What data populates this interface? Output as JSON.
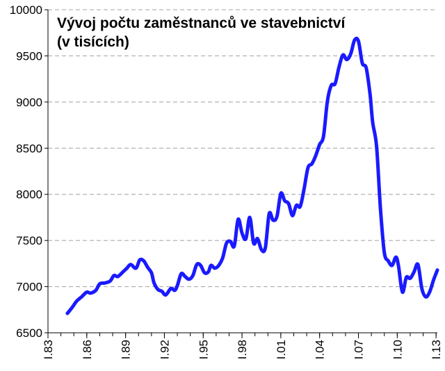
{
  "chart_data": {
    "type": "line",
    "title_lines": [
      "Vývoj počtu zaměstnanců ve stavebnictví",
      "(v tisících)"
    ],
    "xlabel": "",
    "ylabel": "",
    "ylim": [
      6500,
      10000
    ],
    "yticks": [
      6500,
      7000,
      7500,
      8000,
      8500,
      9000,
      9500,
      10000
    ],
    "xlim": [
      1983,
      2013.1
    ],
    "xticks": [
      {
        "value": 1983,
        "label": "I.83"
      },
      {
        "value": 1986,
        "label": "I.86"
      },
      {
        "value": 1989,
        "label": "I.89"
      },
      {
        "value": 1992,
        "label": "I.92"
      },
      {
        "value": 1995,
        "label": "I.95"
      },
      {
        "value": 1998,
        "label": "I.98"
      },
      {
        "value": 2001,
        "label": "I.01"
      },
      {
        "value": 2004,
        "label": "I.04"
      },
      {
        "value": 2007,
        "label": "I.07"
      },
      {
        "value": 2010,
        "label": "I.10"
      },
      {
        "value": 2013,
        "label": "I.13"
      }
    ],
    "grid": "horizontal-dashed",
    "legend": "none",
    "colors": {
      "line": "#1a1aff",
      "grid": "#a0a0a0",
      "axis": "#000000"
    },
    "series": [
      {
        "values": [
          [
            1984.5,
            6710
          ],
          [
            1984.9,
            6780
          ],
          [
            1985.2,
            6840
          ],
          [
            1985.6,
            6890
          ],
          [
            1986.0,
            6940
          ],
          [
            1986.3,
            6930
          ],
          [
            1986.7,
            6960
          ],
          [
            1987.0,
            7030
          ],
          [
            1987.4,
            7040
          ],
          [
            1987.8,
            7060
          ],
          [
            1988.1,
            7120
          ],
          [
            1988.4,
            7110
          ],
          [
            1988.8,
            7160
          ],
          [
            1989.1,
            7200
          ],
          [
            1989.4,
            7240
          ],
          [
            1989.8,
            7200
          ],
          [
            1990.1,
            7290
          ],
          [
            1990.4,
            7280
          ],
          [
            1990.7,
            7210
          ],
          [
            1991.0,
            7150
          ],
          [
            1991.2,
            7040
          ],
          [
            1991.5,
            6970
          ],
          [
            1991.8,
            6950
          ],
          [
            1992.1,
            6910
          ],
          [
            1992.5,
            6980
          ],
          [
            1992.8,
            6960
          ],
          [
            1993.0,
            7010
          ],
          [
            1993.3,
            7140
          ],
          [
            1993.6,
            7110
          ],
          [
            1993.9,
            7080
          ],
          [
            1994.2,
            7120
          ],
          [
            1994.5,
            7240
          ],
          [
            1994.8,
            7230
          ],
          [
            1995.1,
            7150
          ],
          [
            1995.4,
            7160
          ],
          [
            1995.6,
            7230
          ],
          [
            1995.9,
            7200
          ],
          [
            1996.2,
            7230
          ],
          [
            1996.5,
            7310
          ],
          [
            1996.8,
            7470
          ],
          [
            1997.1,
            7490
          ],
          [
            1997.4,
            7440
          ],
          [
            1997.7,
            7730
          ],
          [
            1998.0,
            7580
          ],
          [
            1998.3,
            7520
          ],
          [
            1998.6,
            7750
          ],
          [
            1998.9,
            7470
          ],
          [
            1999.2,
            7520
          ],
          [
            1999.5,
            7400
          ],
          [
            1999.8,
            7420
          ],
          [
            2000.1,
            7790
          ],
          [
            2000.4,
            7720
          ],
          [
            2000.7,
            7760
          ],
          [
            2001.0,
            8010
          ],
          [
            2001.3,
            7930
          ],
          [
            2001.6,
            7900
          ],
          [
            2001.9,
            7770
          ],
          [
            2002.2,
            7880
          ],
          [
            2002.5,
            7870
          ],
          [
            2002.8,
            8060
          ],
          [
            2003.1,
            8290
          ],
          [
            2003.4,
            8330
          ],
          [
            2003.7,
            8420
          ],
          [
            2004.0,
            8540
          ],
          [
            2004.3,
            8630
          ],
          [
            2004.6,
            9010
          ],
          [
            2004.9,
            9180
          ],
          [
            2005.2,
            9200
          ],
          [
            2005.5,
            9380
          ],
          [
            2005.8,
            9510
          ],
          [
            2006.1,
            9460
          ],
          [
            2006.4,
            9520
          ],
          [
            2006.7,
            9670
          ],
          [
            2007.0,
            9660
          ],
          [
            2007.3,
            9420
          ],
          [
            2007.6,
            9370
          ],
          [
            2007.9,
            9080
          ],
          [
            2008.1,
            8780
          ],
          [
            2008.4,
            8520
          ],
          [
            2008.7,
            7850
          ],
          [
            2009.0,
            7370
          ],
          [
            2009.3,
            7280
          ],
          [
            2009.6,
            7230
          ],
          [
            2009.9,
            7320
          ],
          [
            2010.1,
            7220
          ],
          [
            2010.4,
            6940
          ],
          [
            2010.7,
            7100
          ],
          [
            2011.0,
            7090
          ],
          [
            2011.3,
            7160
          ],
          [
            2011.6,
            7240
          ],
          [
            2011.9,
            6980
          ],
          [
            2012.2,
            6890
          ],
          [
            2012.5,
            6940
          ],
          [
            2012.8,
            7070
          ],
          [
            2013.1,
            7180
          ]
        ]
      }
    ]
  }
}
